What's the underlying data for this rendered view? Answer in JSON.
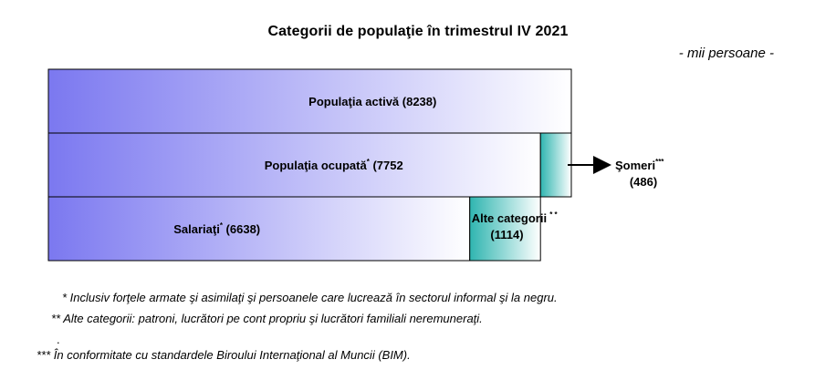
{
  "chart_data": {
    "type": "bar",
    "title": "Categorii de populaţie în trimestrul IV 2021",
    "unit": "- mii persoane -",
    "bars": [
      {
        "key": "activa",
        "label": "Populaţia activă",
        "sup": "",
        "value": 8238,
        "value_text": "(8238)"
      },
      {
        "key": "ocupata",
        "label": "Populaţia ocupată",
        "sup": "*",
        "value": 7752,
        "value_text": "(7752"
      },
      {
        "key": "salariati",
        "label": "Salariaţi",
        "sup": "*",
        "value": 6638,
        "value_text": "(6638)"
      }
    ],
    "segments": [
      {
        "key": "someri",
        "label": "Şomeri",
        "sup": "***",
        "value": 486,
        "value_text": "(486)"
      },
      {
        "key": "alte",
        "label": "Alte categorii",
        "sup": "* *",
        "value": 1114,
        "value_text": "(1114)"
      }
    ],
    "colors": {
      "gradient_start": "#7b78f0",
      "gradient_end": "#ffffff",
      "teal_start": "#2fb5b0",
      "teal_end": "#ffffff"
    }
  },
  "footnotes": [
    "*  Inclusiv forţele armate şi asimilaţi şi persoanele care lucrează în sectorul informal şi la negru.",
    "**  Alte categorii: patroni, lucrători pe cont propriu şi lucrători familiali neremuneraţi.",
    ".",
    "*** În conformitate cu standardele Biroului Internaţional al Muncii (BIM)."
  ]
}
